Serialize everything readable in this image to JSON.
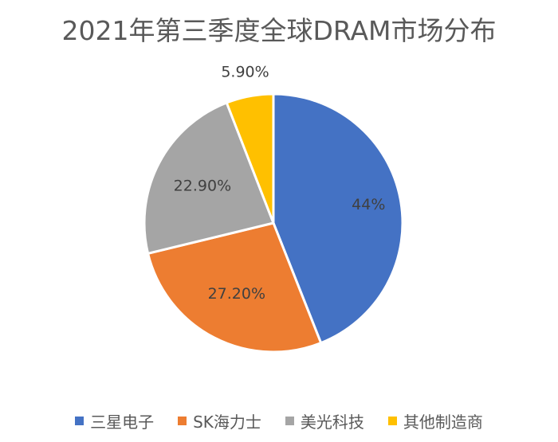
{
  "chart_data": {
    "type": "pie",
    "title": "2021年第三季度全球DRAM市场分布",
    "legend_position": "bottom",
    "slices": [
      {
        "name": "三星电子",
        "value": 44,
        "label": "44%",
        "color": "#4472c4"
      },
      {
        "name": "SK海力士",
        "value": 27.2,
        "label": "27.20%",
        "color": "#ed7d31"
      },
      {
        "name": "美光科技",
        "value": 22.9,
        "label": "22.90%",
        "color": "#a5a5a5"
      },
      {
        "name": "其他制造商",
        "value": 5.9,
        "label": "5.90%",
        "color": "#ffc000"
      }
    ],
    "data_label_color": "#404040",
    "slice_border_color": "#ffffff"
  }
}
